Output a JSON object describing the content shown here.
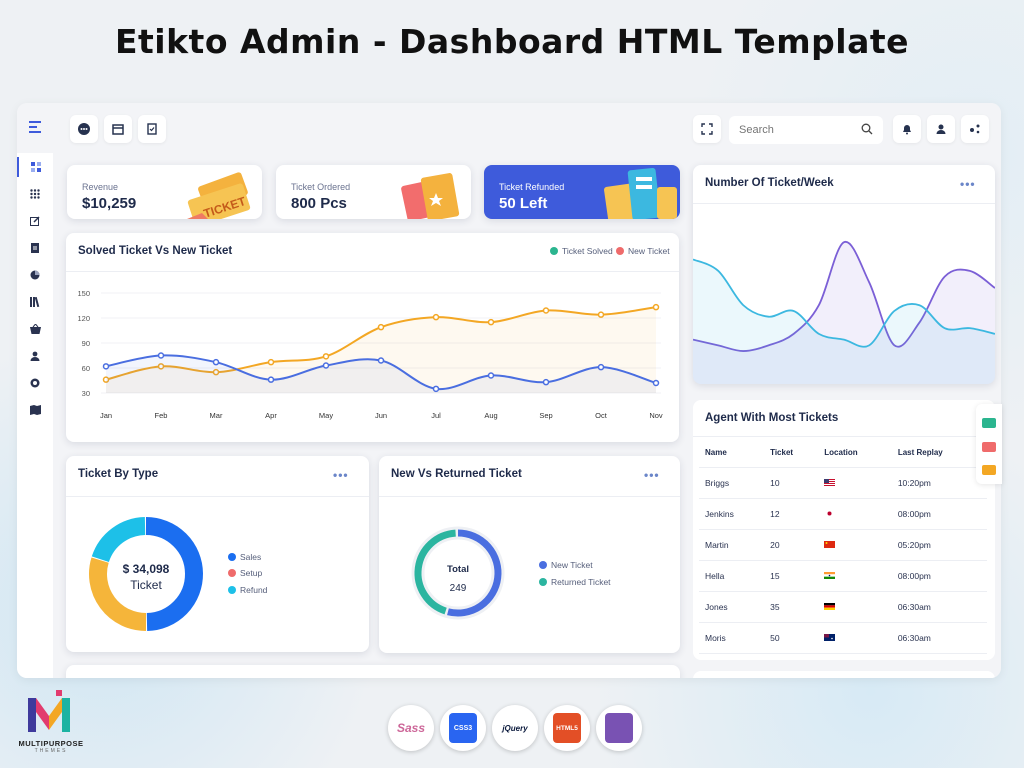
{
  "banner": {
    "title": "Etikto Admin - Dashboard HTML Template"
  },
  "topbar": {
    "search_placeholder": "Search",
    "icons": [
      "menu-icon",
      "chat-icon",
      "calendar-icon",
      "clipboard-icon",
      "fullscreen-icon",
      "search-icon",
      "bell-icon",
      "user-icon",
      "settings-icon"
    ]
  },
  "sidebar": {
    "items": [
      "dashboard-icon",
      "apps-icon",
      "edit-icon",
      "document-icon",
      "pie-chart-icon",
      "library-icon",
      "basket-icon",
      "user-icon",
      "support-icon",
      "map-icon"
    ]
  },
  "stats": [
    {
      "label": "Revenue",
      "value": "$10,259",
      "illustration": "TICKET"
    },
    {
      "label": "Ticket Ordered",
      "value": "800 Pcs"
    },
    {
      "label": "Ticket Refunded",
      "value": "50 Left"
    }
  ],
  "solved_chart": {
    "title": "Solved Ticket Vs New Ticket",
    "legend": [
      "Ticket Solved",
      "New Ticket"
    ],
    "colors": {
      "solved": "#f3a724",
      "new": "#4a6ee0"
    }
  },
  "week_chart": {
    "title": "Number Of Ticket/Week",
    "menu": "•••"
  },
  "type_chart": {
    "title": "Ticket By Type",
    "menu": "•••",
    "center_value": "$ 34,098",
    "center_label": "Ticket",
    "legend": [
      "Sales",
      "Setup",
      "Refund"
    ]
  },
  "returned_chart": {
    "title": "New Vs Returned Ticket",
    "menu": "•••",
    "center_label": "Total",
    "center_value": "249",
    "legend": [
      "New Ticket",
      "Returned Ticket"
    ]
  },
  "agents": {
    "title": "Agent With Most Tickets",
    "columns": [
      "Name",
      "Ticket",
      "Location",
      "Last Replay"
    ],
    "rows": [
      {
        "name": "Briggs",
        "ticket": "10",
        "flag": "us",
        "time": "10:20pm"
      },
      {
        "name": "Jenkins",
        "ticket": "12",
        "flag": "jp",
        "time": "08:00pm"
      },
      {
        "name": "Martin",
        "ticket": "20",
        "flag": "cn",
        "time": "05:20pm"
      },
      {
        "name": "Hella",
        "ticket": "15",
        "flag": "in",
        "time": "08:00pm"
      },
      {
        "name": "Jones",
        "ticket": "35",
        "flag": "de",
        "time": "06:30am"
      },
      {
        "name": "Moris",
        "ticket": "50",
        "flag": "au",
        "time": "06:30am"
      }
    ]
  },
  "tech": [
    "Sass",
    "CSS3",
    "jQuery",
    "HTML5",
    "Bootstrap"
  ],
  "brand": {
    "name": "MULTIPURPOSE",
    "sub": "THEMES"
  },
  "chart_data": [
    {
      "type": "line",
      "title": "Solved Ticket Vs New Ticket",
      "categories": [
        "Jan",
        "Feb",
        "Mar",
        "Apr",
        "May",
        "Jun",
        "Jul",
        "Aug",
        "Sep",
        "Oct",
        "Nov"
      ],
      "yticks": [
        30,
        60,
        90,
        120,
        150
      ],
      "ylim": [
        30,
        150
      ],
      "series": [
        {
          "name": "Ticket Solved",
          "color": "#f3a724",
          "values": [
            46,
            62,
            55,
            67,
            74,
            109,
            121,
            115,
            129,
            124,
            133
          ]
        },
        {
          "name": "New Ticket",
          "color": "#4a6ee0",
          "values": [
            62,
            75,
            67,
            46,
            63,
            69,
            35,
            51,
            43,
            61,
            42
          ]
        }
      ]
    },
    {
      "type": "area",
      "title": "Number Of Ticket/Week",
      "x": [
        0,
        1,
        2,
        3,
        4,
        5,
        6,
        7,
        8,
        9,
        10,
        11,
        12
      ],
      "series": [
        {
          "color": "#7b5fd6",
          "values": [
            30,
            25,
            20,
            25,
            35,
            60,
            115,
            80,
            25,
            45,
            85,
            90,
            75
          ]
        },
        {
          "color": "#3cb8e0",
          "values": [
            100,
            90,
            60,
            50,
            55,
            35,
            30,
            25,
            55,
            60,
            40,
            40,
            35
          ]
        }
      ]
    },
    {
      "type": "pie",
      "title": "Ticket By Type",
      "categories": [
        "Sales",
        "Setup",
        "Refund"
      ],
      "values": [
        50,
        30,
        20
      ],
      "colors": [
        "#1b6ef0",
        "#f5b53a",
        "#1dc0e8"
      ]
    },
    {
      "type": "pie",
      "title": "New Vs Returned Ticket",
      "categories": [
        "New Ticket",
        "Returned Ticket"
      ],
      "values": [
        55,
        45
      ],
      "colors": [
        "#4a6ee0",
        "#2bb5a0"
      ]
    }
  ]
}
